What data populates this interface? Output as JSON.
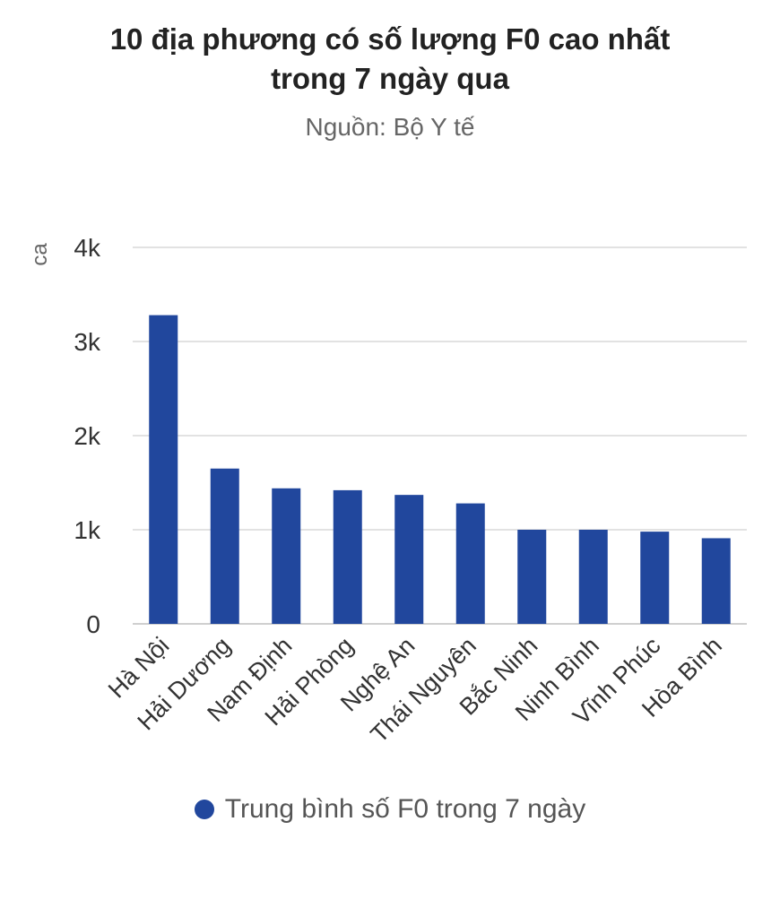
{
  "title_lines": [
    "10 địa phương có số lượng F0 cao nhất",
    "trong 7 ngày qua"
  ],
  "subtitle": "Nguồn: Bộ Y tế",
  "colors": {
    "bar": "#21479d",
    "grid": "#e2e2e2",
    "axis_text": "#333333",
    "axis_title": "#666666"
  },
  "chart_data": {
    "type": "bar",
    "title": "10 địa phương có số lượng F0 cao nhất trong 7 ngày qua",
    "subtitle": "Nguồn: Bộ Y tế",
    "ylabel": "ca",
    "xlabel": "",
    "ylim": [
      0,
      4000
    ],
    "yticks": [
      0,
      1000,
      2000,
      3000,
      4000
    ],
    "ytick_labels": [
      "0",
      "1k",
      "2k",
      "3k",
      "4k"
    ],
    "grid": true,
    "legend_position": "bottom",
    "categories": [
      "Hà Nội",
      "Hải Dương",
      "Nam Định",
      "Hải Phòng",
      "Nghệ An",
      "Thái Nguyên",
      "Bắc Ninh",
      "Ninh Bình",
      "Vĩnh Phúc",
      "Hòa Bình"
    ],
    "series": [
      {
        "name": "Trung bình số F0 trong 7 ngày",
        "values": [
          3280,
          1650,
          1440,
          1420,
          1370,
          1280,
          1000,
          1000,
          980,
          910
        ]
      }
    ]
  }
}
